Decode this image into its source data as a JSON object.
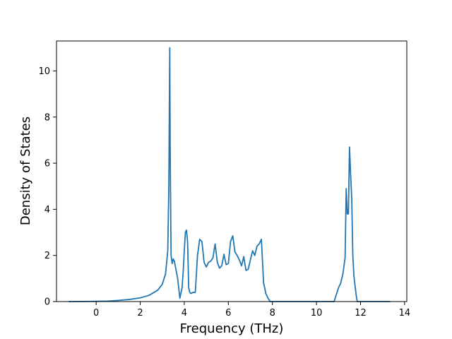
{
  "chart_data": {
    "type": "line",
    "xlabel": "Frequency (THz)",
    "ylabel": "Density of States",
    "xlim": [
      -1.8,
      14.1
    ],
    "ylim": [
      0,
      11.3
    ],
    "xticks": [
      0,
      2,
      4,
      6,
      8,
      10,
      12,
      14
    ],
    "yticks": [
      0,
      2,
      4,
      6,
      8,
      10
    ],
    "grid": false,
    "line_color": "#1f77b4",
    "series": [
      {
        "x": [
          -1.25,
          -0.5,
          0.0,
          0.5,
          1.0,
          1.5,
          2.0,
          2.4,
          2.8,
          3.0,
          3.15,
          3.25,
          3.3,
          3.34,
          3.36,
          3.4,
          3.45,
          3.5,
          3.55,
          3.6,
          3.7,
          3.8,
          3.9,
          3.95,
          4.0,
          4.05,
          4.1,
          4.15,
          4.2,
          4.25,
          4.3,
          4.4,
          4.5,
          4.6,
          4.7,
          4.8,
          4.9,
          5.0,
          5.1,
          5.2,
          5.3,
          5.4,
          5.5,
          5.6,
          5.7,
          5.8,
          5.9,
          6.0,
          6.1,
          6.2,
          6.3,
          6.4,
          6.5,
          6.6,
          6.7,
          6.8,
          6.9,
          7.0,
          7.1,
          7.2,
          7.3,
          7.4,
          7.5,
          7.6,
          7.65,
          7.7,
          7.8,
          7.9,
          8.0,
          8.1,
          9.0,
          10.0,
          10.8,
          10.95,
          11.0,
          11.1,
          11.2,
          11.3,
          11.35,
          11.4,
          11.45,
          11.5,
          11.55,
          11.6,
          11.65,
          11.7,
          11.8,
          11.85,
          11.9,
          12.0,
          12.1,
          12.2,
          12.3,
          13.35
        ],
        "y": [
          0.0,
          0.005,
          0.01,
          0.02,
          0.05,
          0.09,
          0.16,
          0.27,
          0.5,
          0.75,
          1.2,
          2.2,
          5.0,
          11.0,
          6.5,
          2.0,
          1.65,
          1.85,
          1.75,
          1.5,
          1.0,
          0.15,
          0.6,
          1.3,
          2.2,
          3.0,
          3.1,
          2.6,
          0.6,
          0.4,
          0.35,
          0.4,
          0.4,
          2.0,
          2.7,
          2.6,
          1.7,
          1.5,
          1.7,
          1.75,
          1.9,
          2.5,
          1.7,
          1.45,
          1.55,
          2.05,
          1.6,
          1.65,
          2.6,
          2.85,
          2.15,
          2.0,
          1.8,
          1.55,
          1.95,
          1.35,
          1.4,
          1.8,
          2.2,
          2.0,
          2.4,
          2.5,
          2.7,
          0.8,
          0.6,
          0.35,
          0.15,
          0.0,
          0.0,
          0.0,
          0.0,
          0.0,
          0.0,
          0.45,
          0.6,
          0.8,
          1.2,
          1.9,
          4.9,
          3.8,
          3.8,
          6.7,
          5.5,
          4.5,
          2.0,
          1.1,
          0.3,
          0.0,
          0.0,
          0.0,
          0.0,
          0.0,
          0.0,
          0.0
        ]
      }
    ]
  }
}
